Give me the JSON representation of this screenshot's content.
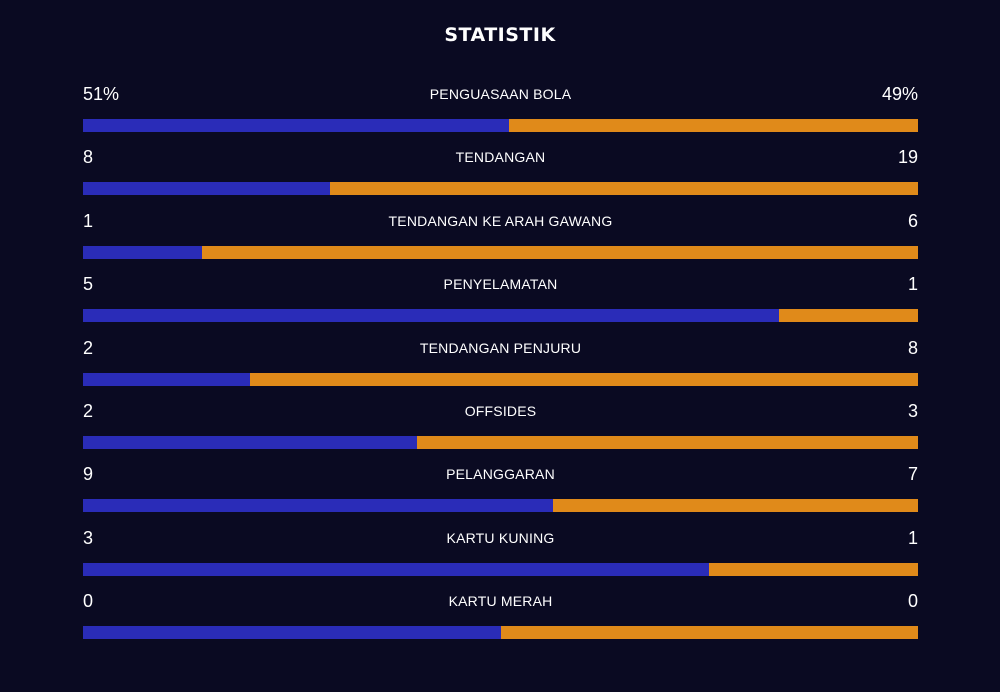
{
  "title": "STATISTIK",
  "colors": {
    "background": "#0a0a22",
    "home": "#2a2cb8",
    "away": "#e08a1a"
  },
  "stats": [
    {
      "label": "PENGUASAAN BOLA",
      "home": "51%",
      "away": "49%",
      "home_share": 0.51
    },
    {
      "label": "TENDANGAN",
      "home": "8",
      "away": "19",
      "home_share": 0.296
    },
    {
      "label": "TENDANGAN KE ARAH GAWANG",
      "home": "1",
      "away": "6",
      "home_share": 0.143
    },
    {
      "label": "PENYELAMATAN",
      "home": "5",
      "away": "1",
      "home_share": 0.833
    },
    {
      "label": "TENDANGAN PENJURU",
      "home": "2",
      "away": "8",
      "home_share": 0.2
    },
    {
      "label": "OFFSIDES",
      "home": "2",
      "away": "3",
      "home_share": 0.4
    },
    {
      "label": "PELANGGARAN",
      "home": "9",
      "away": "7",
      "home_share": 0.5625
    },
    {
      "label": "KARTU KUNING",
      "home": "3",
      "away": "1",
      "home_share": 0.75
    },
    {
      "label": "KARTU MERAH",
      "home": "0",
      "away": "0",
      "home_share": 0.5
    }
  ]
}
